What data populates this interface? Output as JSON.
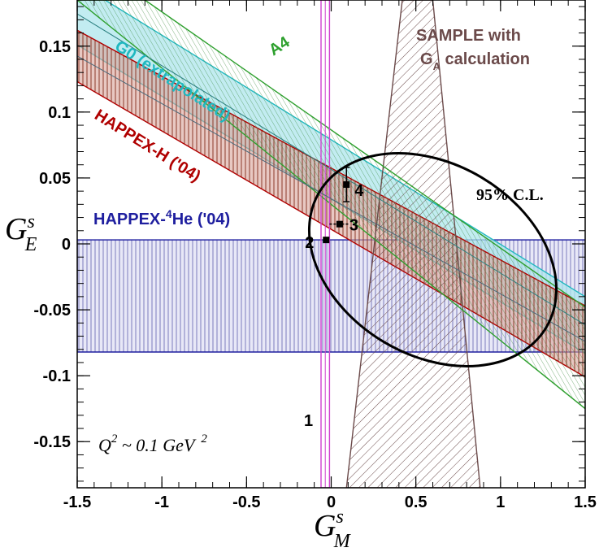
{
  "chart_data": {
    "type": "scatter",
    "xlabel": "G",
    "xlabel_sup": "s",
    "xlabel_sub": "M",
    "ylabel": "G",
    "ylabel_sup": "s",
    "ylabel_sub": "E",
    "xlim": [
      -1.5,
      1.5
    ],
    "ylim": [
      -0.185,
      0.185
    ],
    "x_ticks": [
      -1.5,
      -1,
      -0.5,
      0,
      0.5,
      1,
      1.5
    ],
    "x_tick_labels": [
      "-1.5",
      "-1",
      "-0.5",
      "0",
      "0.5",
      "1",
      "1.5"
    ],
    "y_ticks": [
      -0.15,
      -0.1,
      -0.05,
      0,
      0.05,
      0.1,
      0.15
    ],
    "y_tick_labels": [
      "-0.15",
      "-0.1",
      "-0.05",
      "0",
      "0.05",
      "0.1",
      "0.15"
    ],
    "annotation_q2": {
      "base": "Q",
      "base_sup": "2",
      "middle": " ~ 0.1 GeV",
      "tail_sup": "2"
    },
    "confidence_label": "95% C.L.",
    "ellipse": {
      "cx": 0.6,
      "cy": -0.012,
      "rx": 0.78,
      "ry": 0.033,
      "angle_deg": -30.8,
      "color": "#000000"
    },
    "bands": [
      {
        "id": "happex-4he",
        "label": "HAPPEX-",
        "label_sup": "4",
        "label_tail": "He ('04)",
        "color": "#1f1f9f",
        "hatch": "vertical",
        "polygon": [
          [
            -1.5,
            0.003
          ],
          [
            1.5,
            0.003
          ],
          [
            1.5,
            -0.082
          ],
          [
            -1.5,
            -0.082
          ]
        ]
      },
      {
        "id": "sample",
        "label": "SAMPLE with",
        "label2": "G",
        "label2_sub": "A",
        "label2_tail": " calculation",
        "color": "#6b4a4a",
        "hatch": "diagonal",
        "polygon": [
          [
            0.42,
            0.185
          ],
          [
            0.6,
            0.185
          ],
          [
            0.88,
            -0.185
          ],
          [
            0.09,
            -0.185
          ]
        ]
      },
      {
        "id": "happex-h",
        "label": "HAPPEX-H ('04)",
        "color": "#b00000",
        "hatch": "vertical",
        "fill": "#c88a80",
        "polygon": [
          [
            -1.5,
            0.162
          ],
          [
            1.5,
            -0.047
          ],
          [
            1.5,
            -0.101
          ],
          [
            -1.5,
            0.123
          ]
        ]
      },
      {
        "id": "g0",
        "label": "G0 (extrapolated)",
        "color": "#20b8c0",
        "fill": "#aee6ec",
        "polygon": [
          [
            -1.5,
            0.198
          ],
          [
            1.5,
            -0.04
          ],
          [
            1.5,
            -0.083
          ],
          [
            -1.5,
            0.151
          ]
        ]
      },
      {
        "id": "a4",
        "label": "A4",
        "color": "#2ea02e",
        "hatch": "diagonal",
        "polygon": [
          [
            -1.1,
            0.185
          ],
          [
            1.5,
            -0.048
          ],
          [
            1.5,
            -0.125
          ],
          [
            -1.5,
            0.185
          ]
        ]
      },
      {
        "id": "line1",
        "label": "1",
        "color": "#d040d0",
        "polygon": [
          [
            -0.06,
            0.185
          ],
          [
            -0.01,
            0.185
          ],
          [
            -0.01,
            -0.185
          ],
          [
            -0.06,
            -0.185
          ]
        ]
      }
    ],
    "points": [
      {
        "label": "2",
        "x": -0.03,
        "y": 0.003,
        "yerr": 0.0
      },
      {
        "label": "3",
        "x": 0.05,
        "y": 0.015,
        "xerr": 0.06,
        "yerr": 0.0
      },
      {
        "label": "4",
        "x": 0.09,
        "y": 0.045,
        "yerr": 0.013
      }
    ],
    "line1_label": "1",
    "colors": {
      "axis": "#000000",
      "happex4he": "#1f1f9f",
      "sample": "#6b4a4a",
      "happexh": "#b00000",
      "g0": "#20b8c0",
      "a4": "#2ea02e",
      "line1": "#d040d0"
    }
  }
}
